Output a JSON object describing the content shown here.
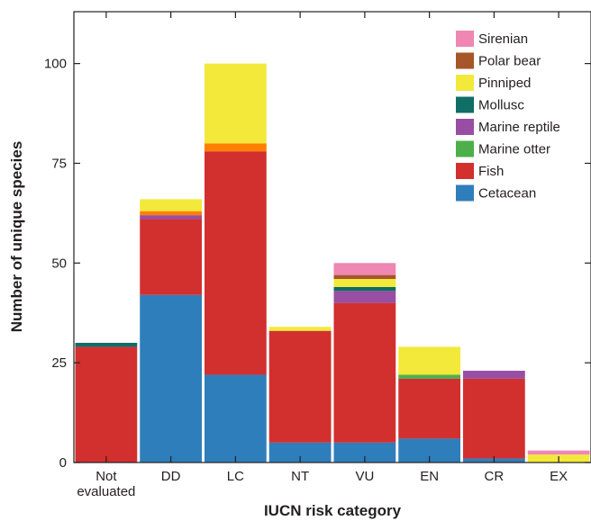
{
  "chart_data": {
    "type": "bar",
    "stacked": true,
    "title": "",
    "xlabel": "IUCN risk category",
    "ylabel": "Number of unique species",
    "ylim": [
      0,
      113
    ],
    "yticks": [
      0,
      25,
      50,
      75,
      100
    ],
    "grid": false,
    "legend_position": "top-right",
    "categories": [
      "Not evaluated",
      "DD",
      "LC",
      "NT",
      "VU",
      "EN",
      "CR",
      "EX"
    ],
    "series": [
      {
        "name": "Cetacean",
        "color": "#2f7ebc",
        "values": [
          0,
          42,
          22,
          5,
          5,
          6,
          1,
          0
        ]
      },
      {
        "name": "Fish",
        "color": "#d22f2f",
        "values": [
          29,
          19,
          56,
          28,
          35,
          15,
          20,
          0
        ]
      },
      {
        "name": "Marine otter",
        "color": "#4daf4a",
        "values": [
          0,
          0,
          0,
          0,
          0,
          1,
          0,
          0
        ]
      },
      {
        "name": "Marine reptile",
        "color": "#984ea3",
        "values": [
          0,
          1,
          0,
          0,
          3,
          0,
          2,
          0
        ]
      },
      {
        "name": "Mollusc",
        "color": "#0f6e66",
        "values": [
          1,
          0,
          0,
          0,
          1,
          0,
          0,
          0
        ]
      },
      {
        "name": "Pinniped",
        "color": "#f2e93a",
        "values": [
          0,
          3,
          20,
          1,
          2,
          7,
          0,
          2
        ]
      },
      {
        "name": "Polar bear",
        "color": "#a65628",
        "values": [
          0,
          0,
          0,
          0,
          1,
          0,
          0,
          0
        ]
      },
      {
        "name": "Sirenian",
        "color": "#ef86b4",
        "values": [
          0,
          0,
          0,
          0,
          3,
          0,
          0,
          1
        ]
      }
    ],
    "extra_segments": [
      {
        "category": "DD",
        "color": "#ff7f00",
        "value": 1,
        "after_series": "Marine reptile"
      },
      {
        "category": "LC",
        "color": "#ff7f00",
        "value": 2,
        "after_series": "Fish"
      }
    ],
    "legend_order": [
      "Sirenian",
      "Polar bear",
      "Pinniped",
      "Mollusc",
      "Marine reptile",
      "Marine otter",
      "Fish",
      "Cetacean"
    ]
  }
}
